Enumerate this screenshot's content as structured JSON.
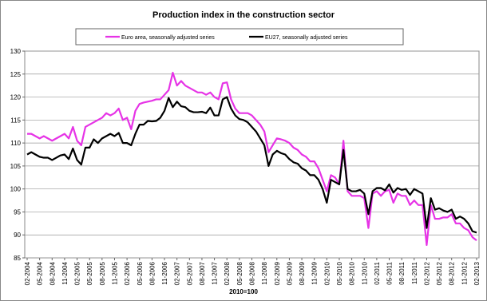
{
  "chart_data": {
    "type": "line",
    "title": "Production index in the construction sector",
    "xlabel": "2010=100",
    "categories": [
      "02-2004",
      null,
      null,
      "05-2004",
      null,
      null,
      "08-2004",
      null,
      null,
      "11-2004",
      null,
      null,
      "02-2005",
      null,
      null,
      "05-2005",
      null,
      null,
      "08-2005",
      null,
      null,
      "11-2005",
      null,
      null,
      "02-2006",
      null,
      null,
      "05-2006",
      null,
      null,
      "08-2006",
      null,
      null,
      "11-2006",
      null,
      null,
      "02-2007",
      null,
      null,
      "05-2007",
      null,
      null,
      "08-2007",
      null,
      null,
      "11-2007",
      null,
      null,
      "02-2008",
      null,
      null,
      "05-2008",
      null,
      null,
      "08-2008",
      null,
      null,
      "11-2008",
      null,
      null,
      "02-2009",
      null,
      null,
      "05-2009",
      null,
      null,
      "08-2009",
      null,
      null,
      "11-2009",
      null,
      null,
      "02-2010",
      null,
      null,
      "05-2010",
      null,
      null,
      "08-2010",
      null,
      null,
      "11-2010",
      null,
      null,
      "02-2011",
      null,
      null,
      "05-2011",
      null,
      null,
      "08-2011",
      null,
      null,
      "11-2011",
      null,
      null,
      "02-2012",
      null,
      null,
      "05-2012",
      null,
      null,
      "08-2012",
      null,
      null,
      "11-2012",
      null,
      null,
      "02-2013"
    ],
    "series": [
      {
        "name": "Euro area, seasonally adjusted series",
        "color": "#e633e6",
        "values": [
          112,
          112,
          111.5,
          111,
          111.5,
          111,
          110.5,
          111,
          111.5,
          112,
          111,
          113.5,
          110.5,
          109.5,
          113.5,
          114,
          114.5,
          115,
          115.5,
          116.5,
          116,
          116.5,
          117.5,
          115,
          115.5,
          113,
          117,
          118.5,
          118.8,
          119,
          119.2,
          119.5,
          119.5,
          120.5,
          121.5,
          125.3,
          122.5,
          123.5,
          122.5,
          122,
          121.5,
          121,
          121,
          120.5,
          121,
          120,
          119.5,
          123,
          123.2,
          119.5,
          117.5,
          116.5,
          116.5,
          116.5,
          116,
          115,
          114,
          112.5,
          108,
          109.5,
          111,
          110.8,
          110.5,
          110,
          109,
          108.5,
          107.5,
          107,
          106,
          106,
          104.5,
          102,
          99.5,
          103,
          102.5,
          101,
          110.5,
          99.5,
          98.5,
          98.5,
          98.5,
          98,
          91.5,
          99,
          99.5,
          98.5,
          99.5,
          99.8,
          97,
          99,
          98.5,
          98.5,
          96.5,
          97.5,
          96.5,
          96.5,
          87.8,
          96.5,
          93.5,
          93.5,
          93.8,
          93.8,
          94.5,
          92.5,
          92.5,
          91.5,
          91,
          89.5,
          88.8
        ]
      },
      {
        "name": "EU27, seasonally adjusted series",
        "color": "#000000",
        "values": [
          107.5,
          108,
          107.5,
          107,
          106.8,
          106.8,
          106.3,
          106.8,
          107.3,
          107.5,
          106.5,
          108.8,
          106.3,
          105.3,
          109,
          109,
          110.8,
          110,
          111,
          111.5,
          112,
          111.5,
          112.2,
          110,
          110,
          109.5,
          112,
          114,
          114,
          114.8,
          114.7,
          114.8,
          115.5,
          117,
          119.8,
          117.8,
          119,
          118,
          117.8,
          117,
          116.7,
          116.7,
          116.8,
          116.5,
          117.7,
          116,
          116,
          119.5,
          120,
          117.5,
          116,
          115.2,
          115,
          114.5,
          113.5,
          112.5,
          111,
          109.5,
          105,
          107.5,
          108.3,
          107.8,
          107.5,
          106.5,
          105.8,
          105.5,
          104.5,
          104,
          103,
          103,
          102,
          100,
          97,
          102,
          101.5,
          101,
          108.5,
          100,
          99.5,
          99.5,
          99.8,
          99,
          94.5,
          99.5,
          100.2,
          100.2,
          99.7,
          101,
          99.2,
          100.2,
          99.8,
          100,
          98.7,
          100,
          99.5,
          99,
          91.5,
          98,
          95.5,
          95.8,
          95.3,
          95,
          95.5,
          93.5,
          94,
          93.5,
          92.5,
          90.8,
          90.5
        ]
      }
    ],
    "ylim": [
      85,
      130
    ],
    "yticks": [
      85,
      90,
      95,
      100,
      105,
      110,
      115,
      120,
      125,
      130
    ],
    "grid": true
  }
}
